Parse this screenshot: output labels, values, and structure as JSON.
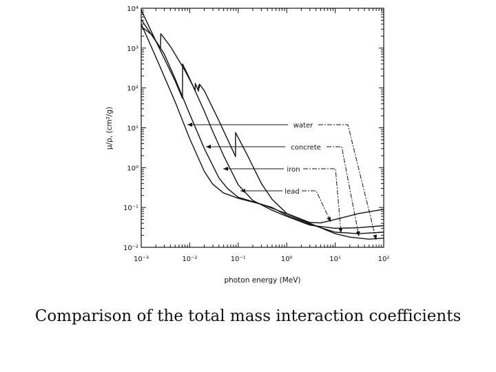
{
  "caption": "Comparison of the total mass interaction coefficients",
  "chart_data": {
    "type": "line",
    "title": "",
    "xlabel": "photon energy (MeV)",
    "ylabel": "μ/ρ, (cm²/g)",
    "x_scale": "log",
    "y_scale": "log",
    "xlim": [
      0.001,
      100
    ],
    "ylim": [
      0.01,
      10000
    ],
    "x_ticks": [
      {
        "value": 0.001,
        "label": "10⁻³"
      },
      {
        "value": 0.01,
        "label": "10⁻²"
      },
      {
        "value": 0.1,
        "label": "10⁻¹"
      },
      {
        "value": 1,
        "label": "10⁰"
      },
      {
        "value": 10,
        "label": "10¹"
      },
      {
        "value": 100,
        "label": "10²"
      }
    ],
    "y_ticks": [
      {
        "value": 0.01,
        "label": "10⁻²"
      },
      {
        "value": 0.1,
        "label": "10⁻¹"
      },
      {
        "value": 1,
        "label": "10⁰"
      },
      {
        "value": 10,
        "label": "10¹"
      },
      {
        "value": 100,
        "label": "10²"
      },
      {
        "value": 1000,
        "label": "10³"
      },
      {
        "value": 10000,
        "label": "10⁴"
      }
    ],
    "grid": false,
    "legend": "inline labels with leader arrows",
    "series": [
      {
        "name": "water",
        "points": [
          [
            0.001,
            4000
          ],
          [
            0.002,
            600
          ],
          [
            0.005,
            45
          ],
          [
            0.01,
            5.3
          ],
          [
            0.02,
            0.8
          ],
          [
            0.03,
            0.38
          ],
          [
            0.05,
            0.23
          ],
          [
            0.1,
            0.17
          ],
          [
            0.3,
            0.12
          ],
          [
            1,
            0.07
          ],
          [
            3,
            0.04
          ],
          [
            10,
            0.022
          ],
          [
            20,
            0.018
          ],
          [
            50,
            0.016
          ],
          [
            100,
            0.017
          ]
        ]
      },
      {
        "name": "concrete",
        "points": [
          [
            0.001,
            3500
          ],
          [
            0.0018,
            2000
          ],
          [
            0.00184,
            1800
          ],
          [
            0.003,
            700
          ],
          [
            0.005,
            170
          ],
          [
            0.01,
            22
          ],
          [
            0.02,
            3
          ],
          [
            0.04,
            0.55
          ],
          [
            0.06,
            0.3
          ],
          [
            0.1,
            0.18
          ],
          [
            0.2,
            0.14
          ],
          [
            0.5,
            0.1
          ],
          [
            1,
            0.064
          ],
          [
            3,
            0.038
          ],
          [
            10,
            0.024
          ],
          [
            30,
            0.022
          ],
          [
            100,
            0.024
          ]
        ]
      },
      {
        "name": "iron",
        "points": [
          [
            0.001,
            9000
          ],
          [
            0.002,
            1500
          ],
          [
            0.005,
            150
          ],
          [
            0.0071,
            55
          ],
          [
            0.00712,
            400
          ],
          [
            0.01,
            170
          ],
          [
            0.02,
            26
          ],
          [
            0.03,
            8
          ],
          [
            0.05,
            2
          ],
          [
            0.1,
            0.37
          ],
          [
            0.2,
            0.15
          ],
          [
            0.5,
            0.085
          ],
          [
            1,
            0.06
          ],
          [
            3,
            0.036
          ],
          [
            10,
            0.03
          ],
          [
            30,
            0.031
          ],
          [
            100,
            0.035
          ]
        ]
      },
      {
        "name": "lead",
        "points": [
          [
            0.001,
            5200
          ],
          [
            0.0025,
            1000
          ],
          [
            0.00253,
            2300
          ],
          [
            0.004,
            1100
          ],
          [
            0.008,
            270
          ],
          [
            0.013,
            88
          ],
          [
            0.01304,
            130
          ],
          [
            0.0152,
            83
          ],
          [
            0.01524,
            115
          ],
          [
            0.0158,
            100
          ],
          [
            0.01586,
            125
          ],
          [
            0.02,
            85
          ],
          [
            0.04,
            15
          ],
          [
            0.088,
            1.9
          ],
          [
            0.08801,
            7.6
          ],
          [
            0.15,
            2.2
          ],
          [
            0.3,
            0.4
          ],
          [
            0.5,
            0.16
          ],
          [
            1,
            0.071
          ],
          [
            3,
            0.042
          ],
          [
            5,
            0.041
          ],
          [
            10,
            0.05
          ],
          [
            30,
            0.07
          ],
          [
            100,
            0.09
          ]
        ]
      }
    ],
    "annotations": [
      {
        "label": "water"
      },
      {
        "label": "concrete"
      },
      {
        "label": "iron"
      },
      {
        "label": "lead"
      }
    ]
  }
}
